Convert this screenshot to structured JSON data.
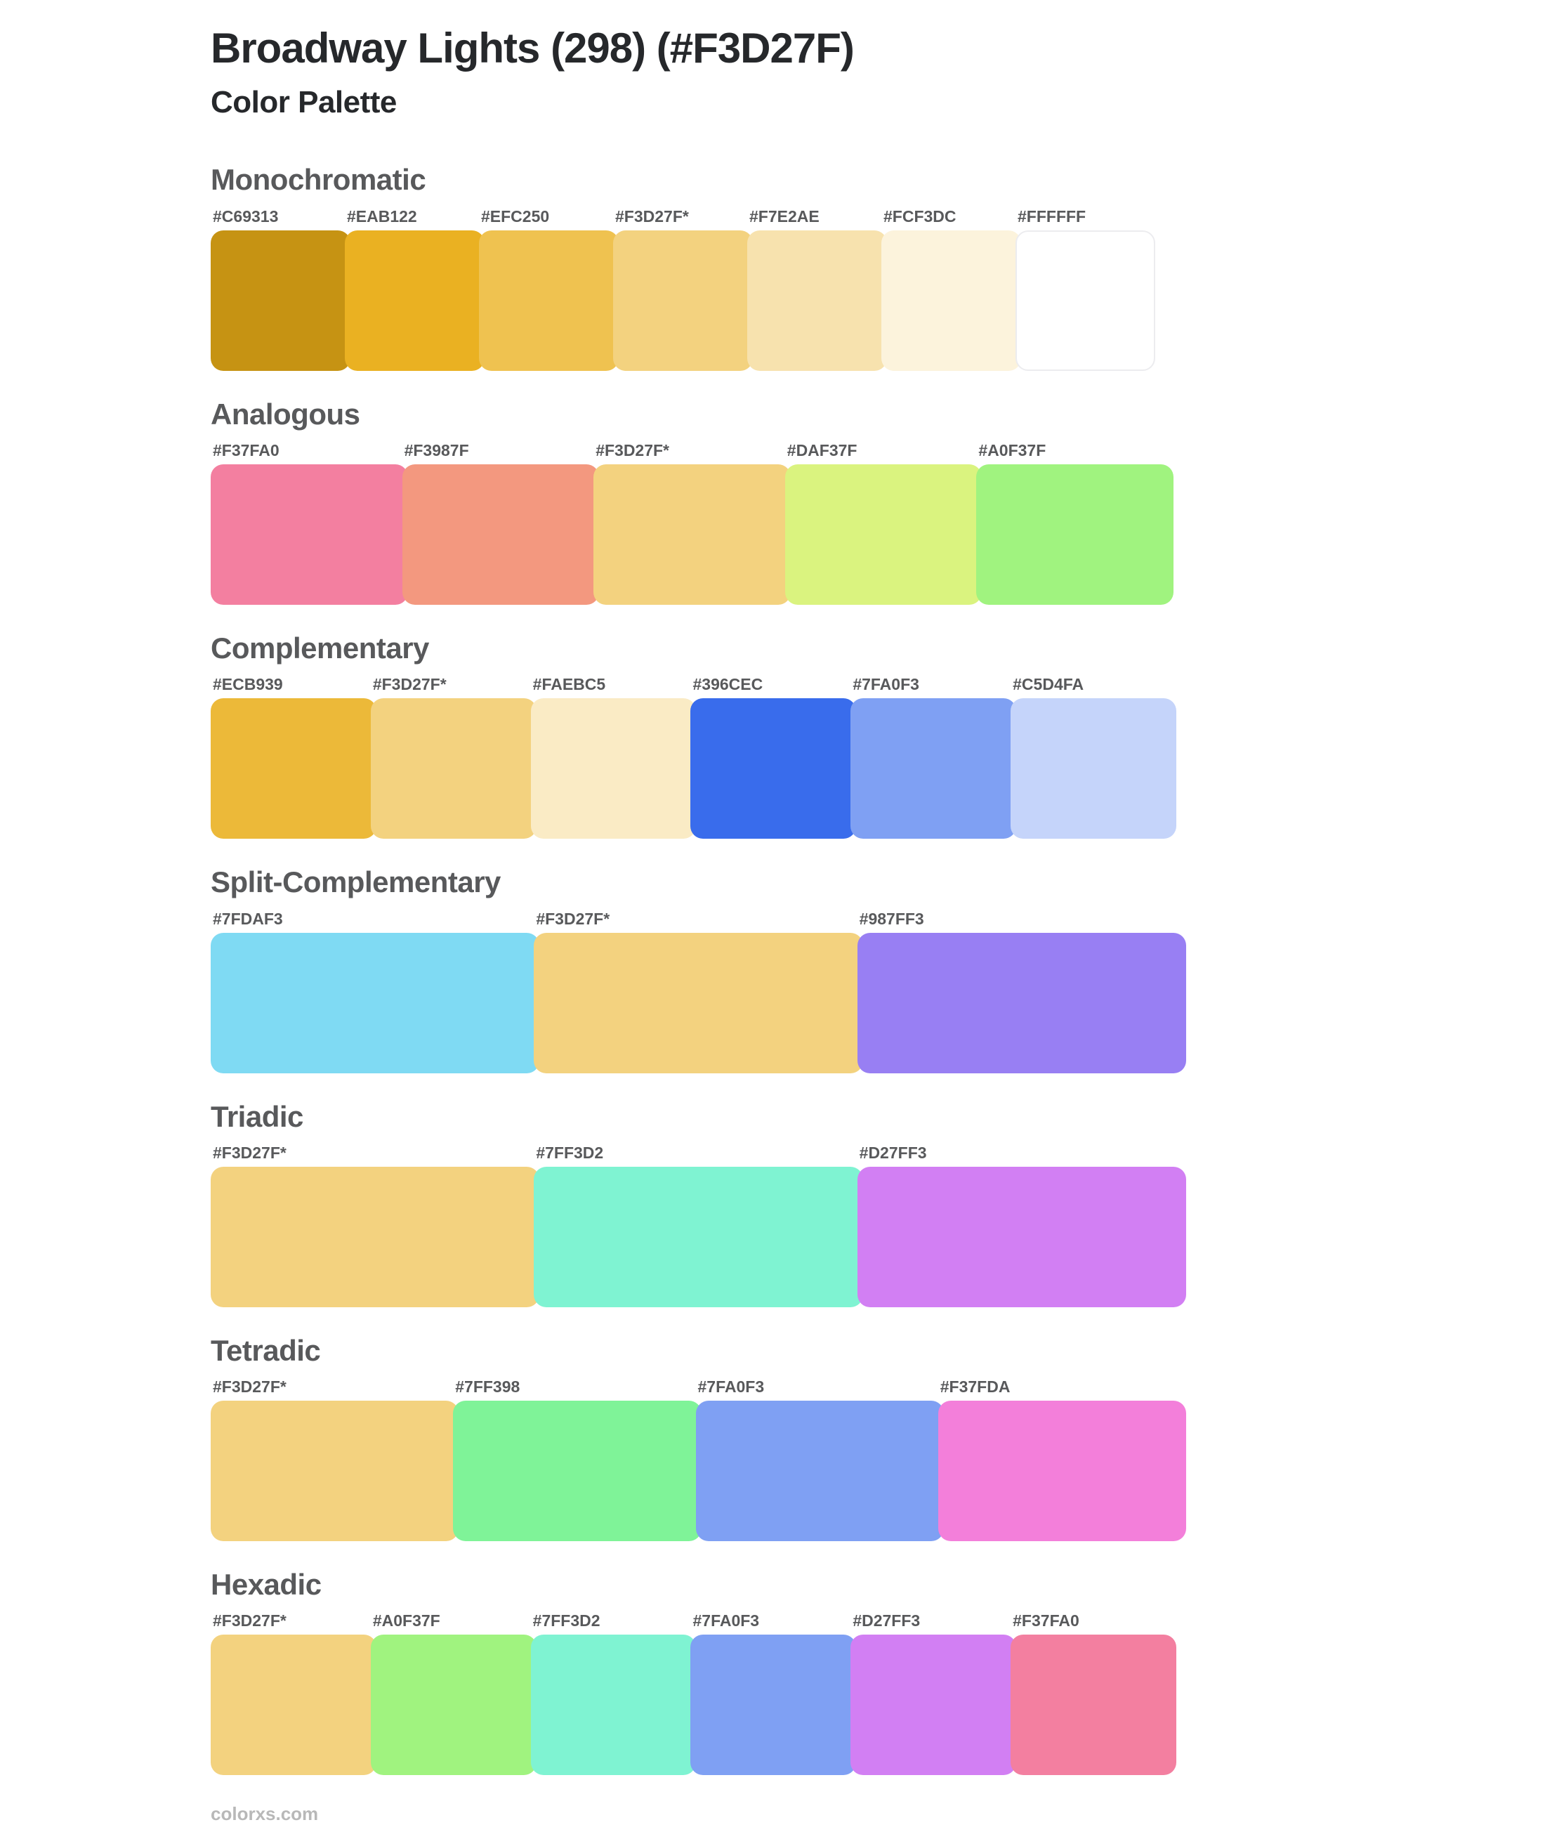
{
  "page": {
    "title": "Broadway Lights (298) (#F3D27F)",
    "subtitle": "Color Palette",
    "footer": "colorxs.com"
  },
  "colors": {
    "base_color": "#F3D27F",
    "title_text": "#26282B",
    "heading_text": "#58595B",
    "label_text": "#58595B",
    "footer_text": "#B8B8B8",
    "background": "#FFFFFF",
    "white_swatch_border": "#ECECEF"
  },
  "sections": [
    {
      "name": "Monochromatic",
      "swatches": [
        {
          "label": "#C69313",
          "color": "#C69313"
        },
        {
          "label": "#EAB122",
          "color": "#EAB122"
        },
        {
          "label": "#EFC250",
          "color": "#EFC250"
        },
        {
          "label": "#F3D27F*",
          "color": "#F3D27F"
        },
        {
          "label": "#F7E2AE",
          "color": "#F7E2AE"
        },
        {
          "label": "#FCF3DC",
          "color": "#FCF3DC"
        },
        {
          "label": "#FFFFFF",
          "color": "#FFFFFF"
        }
      ]
    },
    {
      "name": "Analogous",
      "swatches": [
        {
          "label": "#F37FA0",
          "color": "#F37FA0"
        },
        {
          "label": "#F3987F",
          "color": "#F3987F"
        },
        {
          "label": "#F3D27F*",
          "color": "#F3D27F"
        },
        {
          "label": "#DAF37F",
          "color": "#DAF37F"
        },
        {
          "label": "#A0F37F",
          "color": "#A0F37F"
        }
      ]
    },
    {
      "name": "Complementary",
      "swatches": [
        {
          "label": "#ECB939",
          "color": "#ECB939"
        },
        {
          "label": "#F3D27F*",
          "color": "#F3D27F"
        },
        {
          "label": "#FAEBC5",
          "color": "#FAEBC5"
        },
        {
          "label": "#396CEC",
          "color": "#396CEC"
        },
        {
          "label": "#7FA0F3",
          "color": "#7FA0F3"
        },
        {
          "label": "#C5D4FA",
          "color": "#C5D4FA"
        }
      ]
    },
    {
      "name": "Split-Complementary",
      "swatches": [
        {
          "label": "#7FDAF3",
          "color": "#7FDAF3"
        },
        {
          "label": "#F3D27F*",
          "color": "#F3D27F"
        },
        {
          "label": "#987FF3",
          "color": "#987FF3"
        }
      ]
    },
    {
      "name": "Triadic",
      "swatches": [
        {
          "label": "#F3D27F*",
          "color": "#F3D27F"
        },
        {
          "label": "#7FF3D2",
          "color": "#7FF3D2"
        },
        {
          "label": "#D27FF3",
          "color": "#D27FF3"
        }
      ]
    },
    {
      "name": "Tetradic",
      "swatches": [
        {
          "label": "#F3D27F*",
          "color": "#F3D27F"
        },
        {
          "label": "#7FF398",
          "color": "#7FF398"
        },
        {
          "label": "#7FA0F3",
          "color": "#7FA0F3"
        },
        {
          "label": "#F37FDA",
          "color": "#F37FDA"
        }
      ]
    },
    {
      "name": "Hexadic",
      "swatches": [
        {
          "label": "#F3D27F*",
          "color": "#F3D27F"
        },
        {
          "label": "#A0F37F",
          "color": "#A0F37F"
        },
        {
          "label": "#7FF3D2",
          "color": "#7FF3D2"
        },
        {
          "label": "#7FA0F3",
          "color": "#7FA0F3"
        },
        {
          "label": "#D27FF3",
          "color": "#D27FF3"
        },
        {
          "label": "#F37FA0",
          "color": "#F37FA0"
        }
      ]
    }
  ]
}
